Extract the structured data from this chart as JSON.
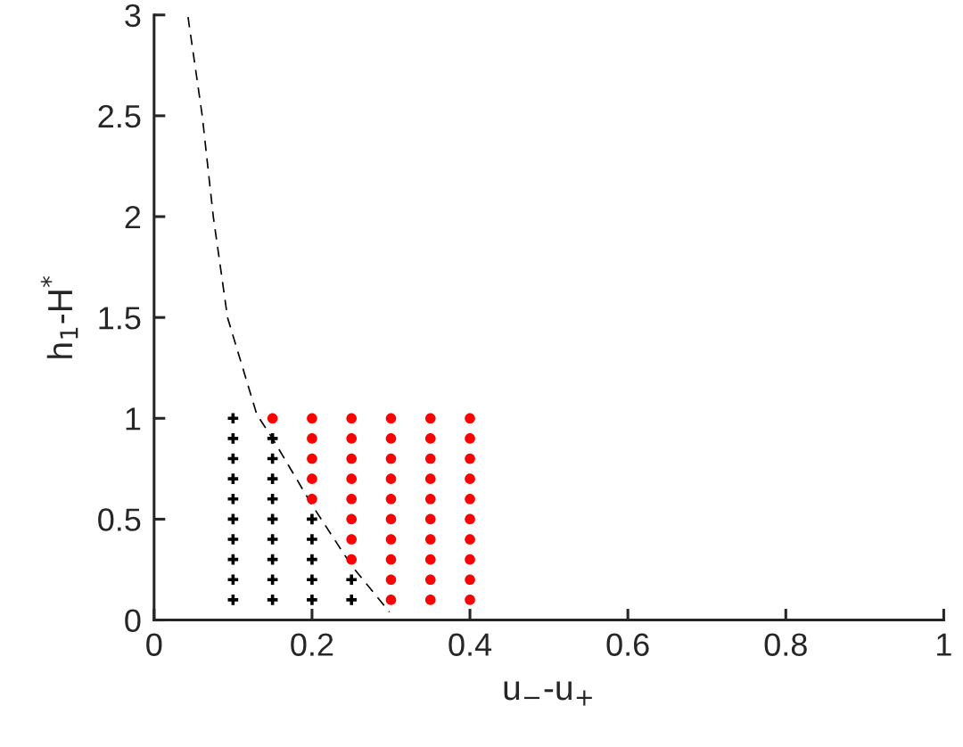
{
  "chart_data": {
    "type": "scatter",
    "xlabel": "u$_{−}$-u$_{+}$",
    "ylabel": "h$_{1}$-H$^{*}$",
    "xlim": [
      0,
      1
    ],
    "ylim": [
      0,
      3
    ],
    "xticks": [
      0,
      0.2,
      0.4,
      0.6,
      0.8,
      1
    ],
    "yticks": [
      0,
      0.5,
      1,
      1.5,
      2,
      2.5,
      3
    ],
    "grid": false,
    "legend": false,
    "series": [
      {
        "marker": "cross",
        "color": "#000000",
        "x": [
          0.1,
          0.1,
          0.1,
          0.1,
          0.1,
          0.1,
          0.1,
          0.1,
          0.1,
          0.1,
          0.15,
          0.15,
          0.15,
          0.15,
          0.15,
          0.15,
          0.15,
          0.15,
          0.15,
          0.2,
          0.2,
          0.2,
          0.2,
          0.2,
          0.25,
          0.25
        ],
        "values": [
          0.1,
          0.2,
          0.3,
          0.4,
          0.5,
          0.6,
          0.7,
          0.8,
          0.9,
          1.0,
          0.1,
          0.2,
          0.3,
          0.4,
          0.5,
          0.6,
          0.7,
          0.8,
          0.9,
          0.1,
          0.2,
          0.3,
          0.4,
          0.5,
          0.1,
          0.2
        ]
      },
      {
        "marker": "circle",
        "color": "#ff0000",
        "x": [
          0.15,
          0.2,
          0.2,
          0.2,
          0.2,
          0.2,
          0.25,
          0.25,
          0.25,
          0.25,
          0.25,
          0.25,
          0.25,
          0.25,
          0.3,
          0.3,
          0.3,
          0.3,
          0.3,
          0.3,
          0.3,
          0.3,
          0.3,
          0.3,
          0.35,
          0.35,
          0.35,
          0.35,
          0.35,
          0.35,
          0.35,
          0.35,
          0.35,
          0.35,
          0.4,
          0.4,
          0.4,
          0.4,
          0.4,
          0.4,
          0.4,
          0.4,
          0.4,
          0.4
        ],
        "values": [
          1.0,
          0.6,
          0.7,
          0.8,
          0.9,
          1.0,
          0.3,
          0.4,
          0.5,
          0.6,
          0.7,
          0.8,
          0.9,
          1.0,
          0.1,
          0.2,
          0.3,
          0.4,
          0.5,
          0.6,
          0.7,
          0.8,
          0.9,
          1.0,
          0.1,
          0.2,
          0.3,
          0.4,
          0.5,
          0.6,
          0.7,
          0.8,
          0.9,
          1.0,
          0.1,
          0.2,
          0.3,
          0.4,
          0.5,
          0.6,
          0.7,
          0.8,
          0.9,
          1.0
        ]
      },
      {
        "type": "line",
        "line_style": "dashed",
        "marker": "none",
        "color": "#000000",
        "x": [
          0.043,
          0.061,
          0.075,
          0.093,
          0.13,
          0.15,
          0.2,
          0.25,
          0.298
        ],
        "values": [
          2.99,
          2.5,
          2.0,
          1.5,
          1.02,
          0.9,
          0.57,
          0.27,
          0.04
        ]
      }
    ]
  }
}
